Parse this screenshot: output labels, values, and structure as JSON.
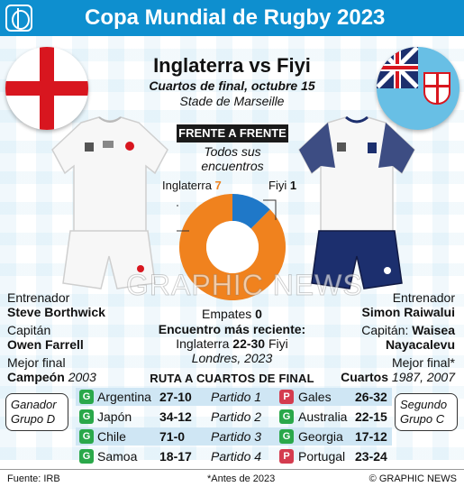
{
  "header": {
    "title": "Copa Mundial de Rugby 2023"
  },
  "match": {
    "title": "Inglaterra vs Fiyi",
    "subtitle": "Cuartos de final, octubre 15",
    "venue": "Stade de Marseille"
  },
  "flags": {
    "england": "england-flag-icon",
    "fiji": "fiji-flag-icon"
  },
  "head_to_head": {
    "badge": "FRENTE A FRENTE",
    "caption_line1": "Todos sus",
    "caption_line2": "encuentros",
    "england_label": "Inglaterra",
    "england_wins": "7",
    "fiji_label": "Fiyi",
    "fiji_wins": "1",
    "draws_label": "Empates",
    "draws_value": "0",
    "colors": {
      "england": "#f0821e",
      "fiji": "#1f78c8"
    }
  },
  "recent": {
    "heading": "Encuentro más reciente:",
    "team_left": "Inglaterra",
    "score": "22-30",
    "team_right": "Fiyi",
    "place": "Londres, 2023"
  },
  "england": {
    "coach_label": "Entrenador",
    "coach": "Steve Borthwick",
    "captain_label": "Capitán",
    "captain": "Owen Farrell",
    "best_label": "Mejor final",
    "best": "Campeón",
    "best_years": "2003"
  },
  "fiji": {
    "coach_label": "Entrenador",
    "coach": "Simon Raiwalui",
    "captain_label": "Capitán:",
    "captain_first": "Waisea",
    "captain_last": "Nayacalevu",
    "best_label": "Mejor final*",
    "best": "Cuartos",
    "best_years": "1987, 2007"
  },
  "route": {
    "heading": "RUTA A CUARTOS DE FINAL",
    "england_group": {
      "line1": "Ganador",
      "line2": "Grupo D"
    },
    "fiji_group": {
      "line1": "Segundo",
      "line2": "Grupo C"
    },
    "rows": [
      {
        "eng_result": "G",
        "eng_opp": "Argentina",
        "eng_score": "27-10",
        "match": "Partido 1",
        "fij_result": "P",
        "fij_opp": "Gales",
        "fij_score": "26-32"
      },
      {
        "eng_result": "G",
        "eng_opp": "Japón",
        "eng_score": "34-12",
        "match": "Partido 2",
        "fij_result": "G",
        "fij_opp": "Australia",
        "fij_score": "22-15"
      },
      {
        "eng_result": "G",
        "eng_opp": "Chile",
        "eng_score": "71-0",
        "match": "Partido 3",
        "fij_result": "G",
        "fij_opp": "Georgia",
        "fij_score": "17-12"
      },
      {
        "eng_result": "G",
        "eng_opp": "Samoa",
        "eng_score": "18-17",
        "match": "Partido 4",
        "fij_result": "P",
        "fij_opp": "Portugal",
        "fij_score": "23-24"
      }
    ]
  },
  "footer": {
    "source": "Fuente: IRB",
    "note": "*Antes de 2023",
    "credit": "© GRAPHIC NEWS"
  },
  "watermark": "GRAPHIC NEWS"
}
